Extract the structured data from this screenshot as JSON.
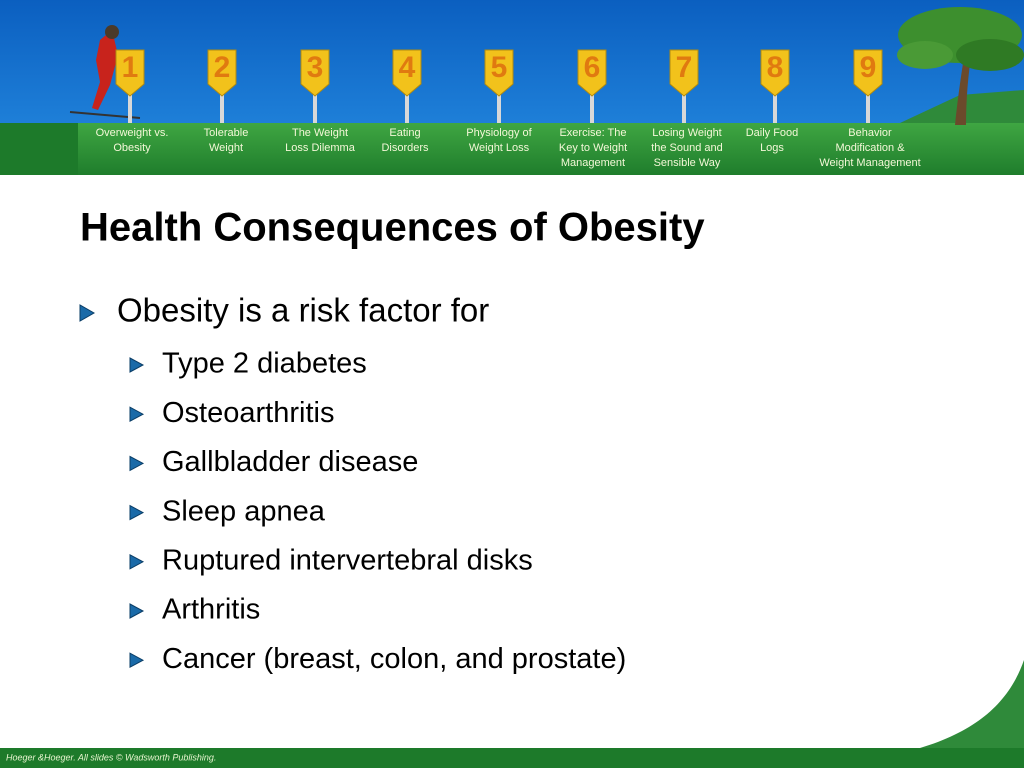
{
  "nav": {
    "items": [
      {
        "number": 1,
        "label": [
          "Overweight vs.",
          "Obesity"
        ]
      },
      {
        "number": 2,
        "label": [
          "Tolerable",
          "Weight"
        ]
      },
      {
        "number": 3,
        "label": [
          "The Weight",
          "Loss Dilemma"
        ]
      },
      {
        "number": 4,
        "label": [
          "Eating",
          "Disorders"
        ]
      },
      {
        "number": 5,
        "label": [
          "Physiology of",
          "Weight Loss"
        ]
      },
      {
        "number": 6,
        "label": [
          "Exercise: The",
          "Key to Weight",
          "Management"
        ]
      },
      {
        "number": 7,
        "label": [
          "Losing Weight",
          "the Sound and",
          "Sensible Way"
        ]
      },
      {
        "number": 8,
        "label": [
          "Daily Food",
          "Logs"
        ]
      },
      {
        "number": 9,
        "label": [
          "Behavior",
          "Modification &",
          "Weight Management"
        ]
      }
    ]
  },
  "slide": {
    "title": "Health Consequences of Obesity",
    "bullet": "Obesity is a risk factor for",
    "subbullets": [
      "Type 2 diabetes",
      "Osteoarthritis",
      "Gallbladder disease",
      "Sleep apnea",
      "Ruptured intervertebral disks",
      "Arthritis",
      "Cancer (breast, colon, and prostate)"
    ]
  },
  "footer": {
    "text": "Hoeger &Hoeger. All slides © Wadsworth Publishing."
  }
}
